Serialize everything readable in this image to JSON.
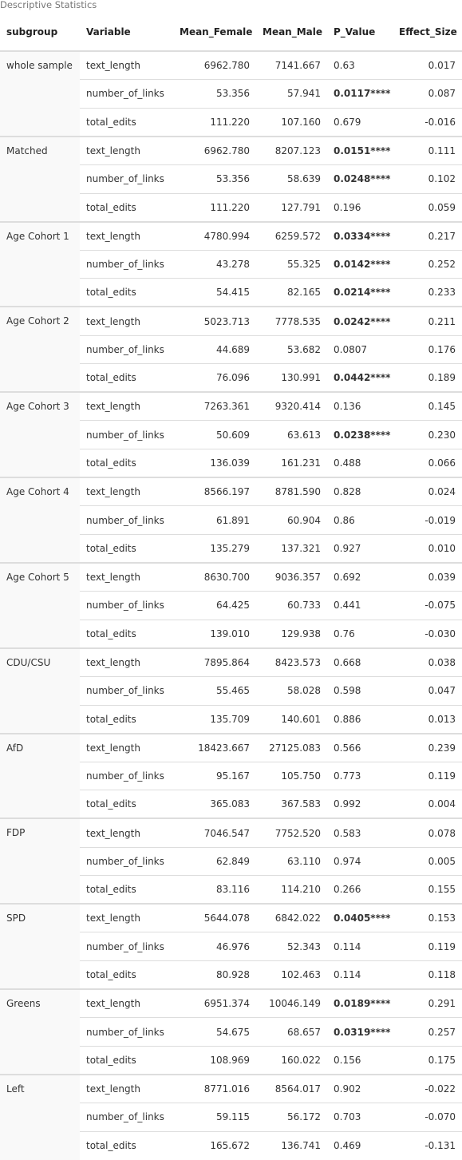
{
  "caption": "Descriptive Statistics",
  "columns": [
    "subgroup",
    "Variable",
    "Mean_Female",
    "Mean_Male",
    "P_Value",
    "Effect_Size"
  ],
  "groups": [
    {
      "subgroup": "whole sample",
      "rows": [
        {
          "variable": "text_length",
          "mean_female": "6962.780",
          "mean_male": "7141.667",
          "p_value": "0.63",
          "significant": false,
          "effect_size": "0.017"
        },
        {
          "variable": "number_of_links",
          "mean_female": "53.356",
          "mean_male": "57.941",
          "p_value": "0.0117****",
          "significant": true,
          "effect_size": "0.087"
        },
        {
          "variable": "total_edits",
          "mean_female": "111.220",
          "mean_male": "107.160",
          "p_value": "0.679",
          "significant": false,
          "effect_size": "-0.016"
        }
      ]
    },
    {
      "subgroup": "Matched",
      "rows": [
        {
          "variable": "text_length",
          "mean_female": "6962.780",
          "mean_male": "8207.123",
          "p_value": "0.0151****",
          "significant": true,
          "effect_size": "0.111"
        },
        {
          "variable": "number_of_links",
          "mean_female": "53.356",
          "mean_male": "58.639",
          "p_value": "0.0248****",
          "significant": true,
          "effect_size": "0.102"
        },
        {
          "variable": "total_edits",
          "mean_female": "111.220",
          "mean_male": "127.791",
          "p_value": "0.196",
          "significant": false,
          "effect_size": "0.059"
        }
      ]
    },
    {
      "subgroup": "Age Cohort 1",
      "rows": [
        {
          "variable": "text_length",
          "mean_female": "4780.994",
          "mean_male": "6259.572",
          "p_value": "0.0334****",
          "significant": true,
          "effect_size": "0.217"
        },
        {
          "variable": "number_of_links",
          "mean_female": "43.278",
          "mean_male": "55.325",
          "p_value": "0.0142****",
          "significant": true,
          "effect_size": "0.252"
        },
        {
          "variable": "total_edits",
          "mean_female": "54.415",
          "mean_male": "82.165",
          "p_value": "0.0214****",
          "significant": true,
          "effect_size": "0.233"
        }
      ]
    },
    {
      "subgroup": "Age Cohort 2",
      "rows": [
        {
          "variable": "text_length",
          "mean_female": "5023.713",
          "mean_male": "7778.535",
          "p_value": "0.0242****",
          "significant": true,
          "effect_size": "0.211"
        },
        {
          "variable": "number_of_links",
          "mean_female": "44.689",
          "mean_male": "53.682",
          "p_value": "0.0807",
          "significant": false,
          "effect_size": "0.176"
        },
        {
          "variable": "total_edits",
          "mean_female": "76.096",
          "mean_male": "130.991",
          "p_value": "0.0442****",
          "significant": true,
          "effect_size": "0.189"
        }
      ]
    },
    {
      "subgroup": "Age Cohort 3",
      "rows": [
        {
          "variable": "text_length",
          "mean_female": "7263.361",
          "mean_male": "9320.414",
          "p_value": "0.136",
          "significant": false,
          "effect_size": "0.145"
        },
        {
          "variable": "number_of_links",
          "mean_female": "50.609",
          "mean_male": "63.613",
          "p_value": "0.0238****",
          "significant": true,
          "effect_size": "0.230"
        },
        {
          "variable": "total_edits",
          "mean_female": "136.039",
          "mean_male": "161.231",
          "p_value": "0.488",
          "significant": false,
          "effect_size": "0.066"
        }
      ]
    },
    {
      "subgroup": "Age Cohort 4",
      "rows": [
        {
          "variable": "text_length",
          "mean_female": "8566.197",
          "mean_male": "8781.590",
          "p_value": "0.828",
          "significant": false,
          "effect_size": "0.024"
        },
        {
          "variable": "number_of_links",
          "mean_female": "61.891",
          "mean_male": "60.904",
          "p_value": "0.86",
          "significant": false,
          "effect_size": "-0.019"
        },
        {
          "variable": "total_edits",
          "mean_female": "135.279",
          "mean_male": "137.321",
          "p_value": "0.927",
          "significant": false,
          "effect_size": "0.010"
        }
      ]
    },
    {
      "subgroup": "Age Cohort 5",
      "rows": [
        {
          "variable": "text_length",
          "mean_female": "8630.700",
          "mean_male": "9036.357",
          "p_value": "0.692",
          "significant": false,
          "effect_size": "0.039"
        },
        {
          "variable": "number_of_links",
          "mean_female": "64.425",
          "mean_male": "60.733",
          "p_value": "0.441",
          "significant": false,
          "effect_size": "-0.075"
        },
        {
          "variable": "total_edits",
          "mean_female": "139.010",
          "mean_male": "129.938",
          "p_value": "0.76",
          "significant": false,
          "effect_size": "-0.030"
        }
      ]
    },
    {
      "subgroup": "CDU/CSU",
      "rows": [
        {
          "variable": "text_length",
          "mean_female": "7895.864",
          "mean_male": "8423.573",
          "p_value": "0.668",
          "significant": false,
          "effect_size": "0.038"
        },
        {
          "variable": "number_of_links",
          "mean_female": "55.465",
          "mean_male": "58.028",
          "p_value": "0.598",
          "significant": false,
          "effect_size": "0.047"
        },
        {
          "variable": "total_edits",
          "mean_female": "135.709",
          "mean_male": "140.601",
          "p_value": "0.886",
          "significant": false,
          "effect_size": "0.013"
        }
      ]
    },
    {
      "subgroup": "AfD",
      "rows": [
        {
          "variable": "text_length",
          "mean_female": "18423.667",
          "mean_male": "27125.083",
          "p_value": "0.566",
          "significant": false,
          "effect_size": "0.239"
        },
        {
          "variable": "number_of_links",
          "mean_female": "95.167",
          "mean_male": "105.750",
          "p_value": "0.773",
          "significant": false,
          "effect_size": "0.119"
        },
        {
          "variable": "total_edits",
          "mean_female": "365.083",
          "mean_male": "367.583",
          "p_value": "0.992",
          "significant": false,
          "effect_size": "0.004"
        }
      ]
    },
    {
      "subgroup": "FDP",
      "rows": [
        {
          "variable": "text_length",
          "mean_female": "7046.547",
          "mean_male": "7752.520",
          "p_value": "0.583",
          "significant": false,
          "effect_size": "0.078"
        },
        {
          "variable": "number_of_links",
          "mean_female": "62.849",
          "mean_male": "63.110",
          "p_value": "0.974",
          "significant": false,
          "effect_size": "0.005"
        },
        {
          "variable": "total_edits",
          "mean_female": "83.116",
          "mean_male": "114.210",
          "p_value": "0.266",
          "significant": false,
          "effect_size": "0.155"
        }
      ]
    },
    {
      "subgroup": "SPD",
      "rows": [
        {
          "variable": "text_length",
          "mean_female": "5644.078",
          "mean_male": "6842.022",
          "p_value": "0.0405****",
          "significant": true,
          "effect_size": "0.153"
        },
        {
          "variable": "number_of_links",
          "mean_female": "46.976",
          "mean_male": "52.343",
          "p_value": "0.114",
          "significant": false,
          "effect_size": "0.119"
        },
        {
          "variable": "total_edits",
          "mean_female": "80.928",
          "mean_male": "102.463",
          "p_value": "0.114",
          "significant": false,
          "effect_size": "0.118"
        }
      ]
    },
    {
      "subgroup": "Greens",
      "rows": [
        {
          "variable": "text_length",
          "mean_female": "6951.374",
          "mean_male": "10046.149",
          "p_value": "0.0189****",
          "significant": true,
          "effect_size": "0.291"
        },
        {
          "variable": "number_of_links",
          "mean_female": "54.675",
          "mean_male": "68.657",
          "p_value": "0.0319****",
          "significant": true,
          "effect_size": "0.257"
        },
        {
          "variable": "total_edits",
          "mean_female": "108.969",
          "mean_male": "160.022",
          "p_value": "0.156",
          "significant": false,
          "effect_size": "0.175"
        }
      ]
    },
    {
      "subgroup": "Left",
      "rows": [
        {
          "variable": "text_length",
          "mean_female": "8771.016",
          "mean_male": "8564.017",
          "p_value": "0.902",
          "significant": false,
          "effect_size": "-0.022"
        },
        {
          "variable": "number_of_links",
          "mean_female": "59.115",
          "mean_male": "56.172",
          "p_value": "0.703",
          "significant": false,
          "effect_size": "-0.070"
        },
        {
          "variable": "total_edits",
          "mean_female": "165.672",
          "mean_male": "136.741",
          "p_value": "0.469",
          "significant": false,
          "effect_size": "-0.131"
        }
      ]
    }
  ]
}
